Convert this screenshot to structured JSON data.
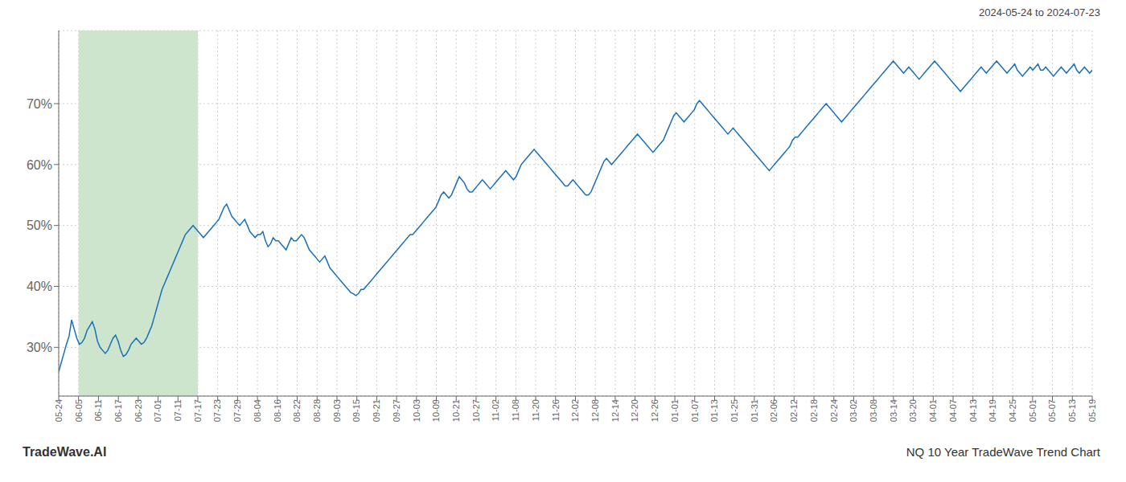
{
  "chart_data": {
    "type": "line",
    "subtitle": "2024-05-24 to 2024-07-23",
    "annotations": [
      "TradeWave.AI",
      "NQ 10 Year TradeWave Trend Chart"
    ],
    "color": "#1a6fba",
    "grid": true,
    "highlight": {
      "range": [
        7.692307692307692,
        53.84615384615385
      ],
      "color": "#cce5cc"
    },
    "xlim": [
      0,
      400
    ],
    "xticks": [
      {
        "value": 0,
        "label": "05-24"
      },
      {
        "value": 7.692307692307692,
        "label": "06-05"
      },
      {
        "value": 15.384615384615385,
        "label": "06-11"
      },
      {
        "value": 23.076923076923077,
        "label": "06-17"
      },
      {
        "value": 30.76923076923077,
        "label": "06-23"
      },
      {
        "value": 38.46153846153846,
        "label": "07-01"
      },
      {
        "value": 46.15384615384615,
        "label": "07-11"
      },
      {
        "value": 53.84615384615385,
        "label": "07-17"
      },
      {
        "value": 61.53846153846154,
        "label": "07-23"
      },
      {
        "value": 69.23076923076923,
        "label": "07-29"
      },
      {
        "value": 76.92307692307692,
        "label": "08-04"
      },
      {
        "value": 84.61538461538461,
        "label": "08-16"
      },
      {
        "value": 92.3076923076923,
        "label": "08-22"
      },
      {
        "value": 100,
        "label": "08-28"
      },
      {
        "value": 107.6923076923077,
        "label": "09-03"
      },
      {
        "value": 115.38461538461539,
        "label": "09-15"
      },
      {
        "value": 123.07692307692308,
        "label": "09-21"
      },
      {
        "value": 130.76923076923077,
        "label": "09-27"
      },
      {
        "value": 138.46153846153845,
        "label": "10-03"
      },
      {
        "value": 146.15384615384616,
        "label": "10-09"
      },
      {
        "value": 153.84615384615384,
        "label": "10-21"
      },
      {
        "value": 161.53846153846155,
        "label": "10-27"
      },
      {
        "value": 169.23076923076923,
        "label": "11-02"
      },
      {
        "value": 176.92307692307693,
        "label": "11-08"
      },
      {
        "value": 184.6153846153846,
        "label": "11-20"
      },
      {
        "value": 192.30769230769232,
        "label": "11-26"
      },
      {
        "value": 200,
        "label": "12-02"
      },
      {
        "value": 207.69230769230768,
        "label": "12-08"
      },
      {
        "value": 215.3846153846154,
        "label": "12-14"
      },
      {
        "value": 223.07692307692307,
        "label": "12-20"
      },
      {
        "value": 230.76923076923077,
        "label": "12-26"
      },
      {
        "value": 238.46153846153845,
        "label": "01-01"
      },
      {
        "value": 246.15384615384616,
        "label": "01-07"
      },
      {
        "value": 253.84615384615384,
        "label": "01-13"
      },
      {
        "value": 261.53846153846155,
        "label": "01-25"
      },
      {
        "value": 269.2307692307692,
        "label": "01-31"
      },
      {
        "value": 276.9230769230769,
        "label": "02-06"
      },
      {
        "value": 284.61538461538464,
        "label": "02-12"
      },
      {
        "value": 292.3076923076923,
        "label": "02-18"
      },
      {
        "value": 300,
        "label": "02-24"
      },
      {
        "value": 307.6923076923077,
        "label": "03-02"
      },
      {
        "value": 315.38461538461536,
        "label": "03-08"
      },
      {
        "value": 323.0769230769231,
        "label": "03-14"
      },
      {
        "value": 330.7692307692308,
        "label": "03-20"
      },
      {
        "value": 338.46153846153845,
        "label": "04-01"
      },
      {
        "value": 346.15384615384613,
        "label": "04-07"
      },
      {
        "value": 353.84615384615387,
        "label": "04-13"
      },
      {
        "value": 361.53846153846155,
        "label": "04-19"
      },
      {
        "value": 369.2307692307692,
        "label": "04-25"
      },
      {
        "value": 376.9230769230769,
        "label": "05-01"
      },
      {
        "value": 384.61538461538464,
        "label": "05-07"
      },
      {
        "value": 392.3076923076923,
        "label": "05-13"
      },
      {
        "value": 400,
        "label": "05-19"
      }
    ],
    "ylim": [
      22,
      82
    ],
    "yticks": [
      {
        "value": 30,
        "label": "30%"
      },
      {
        "value": 40,
        "label": "40%"
      },
      {
        "value": 50,
        "label": "50%"
      },
      {
        "value": 60,
        "label": "60%"
      },
      {
        "value": 70,
        "label": "70%"
      }
    ],
    "values": [
      26.0,
      27.5,
      29.0,
      30.5,
      31.8,
      34.5,
      33.0,
      31.5,
      30.5,
      30.8,
      31.5,
      32.8,
      33.5,
      34.2,
      33.0,
      31.0,
      30.0,
      29.5,
      29.0,
      29.5,
      30.5,
      31.5,
      32.0,
      31.0,
      29.5,
      28.5,
      28.8,
      29.5,
      30.5,
      31.0,
      31.5,
      31.0,
      30.5,
      30.8,
      31.5,
      32.5,
      33.5,
      35.0,
      36.5,
      38.0,
      39.5,
      40.5,
      41.5,
      42.5,
      43.5,
      44.5,
      45.5,
      46.5,
      47.5,
      48.5,
      49.0,
      49.5,
      50.0,
      49.5,
      49.0,
      48.5,
      48.0,
      48.5,
      49.0,
      49.5,
      50.0,
      50.5,
      51.0,
      52.0,
      53.0,
      53.5,
      52.5,
      51.5,
      51.0,
      50.5,
      50.0,
      50.5,
      51.0,
      50.0,
      49.0,
      48.5,
      48.0,
      48.5,
      48.5,
      49.0,
      47.5,
      46.5,
      47.0,
      48.0,
      47.5,
      47.5,
      47.0,
      46.5,
      46.0,
      47.0,
      48.0,
      47.5,
      47.5,
      48.0,
      48.5,
      48.0,
      47.0,
      46.0,
      45.5,
      45.0,
      44.5,
      44.0,
      44.5,
      45.0,
      44.0,
      43.0,
      42.5,
      42.0,
      41.5,
      41.0,
      40.5,
      40.0,
      39.5,
      39.0,
      38.8,
      38.5,
      38.8,
      39.5,
      39.5,
      40.0,
      40.5,
      41.0,
      41.5,
      42.0,
      42.5,
      43.0,
      43.5,
      44.0,
      44.5,
      45.0,
      45.5,
      46.0,
      46.5,
      47.0,
      47.5,
      48.0,
      48.5,
      48.5,
      49.0,
      49.5,
      50.0,
      50.5,
      51.0,
      51.5,
      52.0,
      52.5,
      53.0,
      54.0,
      55.0,
      55.5,
      55.0,
      54.5,
      55.0,
      56.0,
      57.0,
      58.0,
      57.5,
      57.0,
      56.0,
      55.5,
      55.5,
      56.0,
      56.5,
      57.0,
      57.5,
      57.0,
      56.5,
      56.0,
      56.5,
      57.0,
      57.5,
      58.0,
      58.5,
      59.0,
      58.5,
      58.0,
      57.5,
      58.0,
      59.0,
      60.0,
      60.5,
      61.0,
      61.5,
      62.0,
      62.5,
      62.0,
      61.5,
      61.0,
      60.5,
      60.0,
      59.5,
      59.0,
      58.5,
      58.0,
      57.5,
      57.0,
      56.5,
      56.5,
      57.0,
      57.5,
      57.0,
      56.5,
      56.0,
      55.5,
      55.0,
      55.0,
      55.5,
      56.5,
      57.5,
      58.5,
      59.5,
      60.5,
      61.0,
      60.5,
      60.0,
      60.5,
      61.0,
      61.5,
      62.0,
      62.5,
      63.0,
      63.5,
      64.0,
      64.5,
      65.0,
      64.5,
      64.0,
      63.5,
      63.0,
      62.5,
      62.0,
      62.5,
      63.0,
      63.5,
      64.0,
      65.0,
      66.0,
      67.0,
      68.0,
      68.5,
      68.0,
      67.5,
      67.0,
      67.5,
      68.0,
      68.5,
      69.0,
      70.0,
      70.5,
      70.0,
      69.5,
      69.0,
      68.5,
      68.0,
      67.5,
      67.0,
      66.5,
      66.0,
      65.5,
      65.0,
      65.5,
      66.0,
      65.5,
      65.0,
      64.5,
      64.0,
      63.5,
      63.0,
      62.5,
      62.0,
      61.5,
      61.0,
      60.5,
      60.0,
      59.5,
      59.0,
      59.5,
      60.0,
      60.5,
      61.0,
      61.5,
      62.0,
      62.5,
      63.0,
      64.0,
      64.5,
      64.5,
      65.0,
      65.5,
      66.0,
      66.5,
      67.0,
      67.5,
      68.0,
      68.5,
      69.0,
      69.5,
      70.0,
      69.5,
      69.0,
      68.5,
      68.0,
      67.5,
      67.0,
      67.5,
      68.0,
      68.5,
      69.0,
      69.5,
      70.0,
      70.5,
      71.0,
      71.5,
      72.0,
      72.5,
      73.0,
      73.5,
      74.0,
      74.5,
      75.0,
      75.5,
      76.0,
      76.5,
      77.0,
      76.5,
      76.0,
      75.5,
      75.0,
      75.5,
      76.0,
      75.5,
      75.0,
      74.5,
      74.0,
      74.5,
      75.0,
      75.5,
      76.0,
      76.5,
      77.0,
      76.5,
      76.0,
      75.5,
      75.0,
      74.5,
      74.0,
      73.5,
      73.0,
      72.5,
      72.0,
      72.5,
      73.0,
      73.5,
      74.0,
      74.5,
      75.0,
      75.5,
      76.0,
      75.5,
      75.0,
      75.5,
      76.0,
      76.5,
      77.0,
      76.5,
      76.0,
      75.5,
      75.0,
      75.5,
      76.0,
      76.5,
      75.5,
      75.0,
      74.5,
      75.0,
      75.5,
      76.0,
      75.5,
      76.0,
      76.5,
      75.5,
      75.5,
      76.0,
      75.5,
      75.0,
      74.5,
      75.0,
      75.5,
      76.0,
      75.5,
      75.0,
      75.5,
      76.0,
      76.5,
      75.5,
      75.0,
      75.5,
      76.0,
      75.5,
      75.0,
      75.5
    ]
  }
}
